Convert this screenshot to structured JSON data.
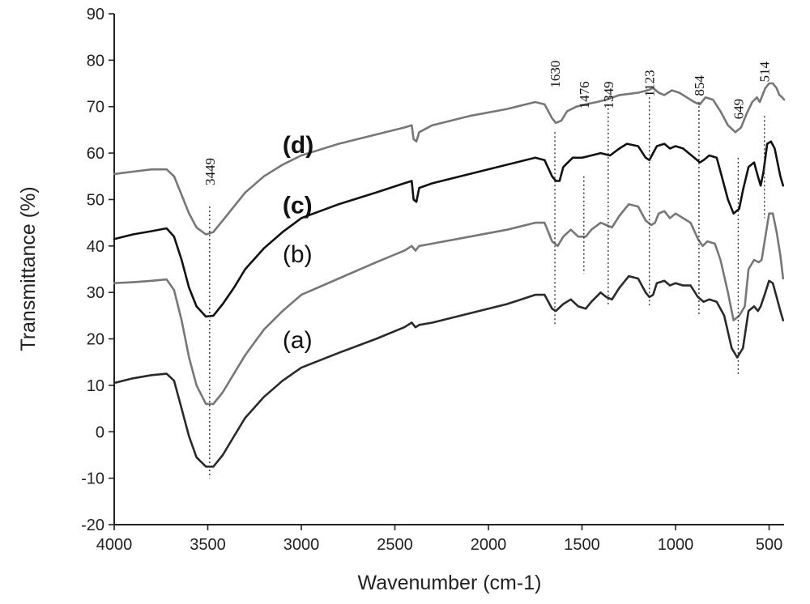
{
  "chart_data": {
    "type": "line",
    "title": "",
    "xlabel": "Wavenumber (cm-1)",
    "ylabel": "Transmittance (%)",
    "xlim": [
      4000,
      420
    ],
    "ylim": [
      -20,
      90
    ],
    "x_ticks": [
      4000,
      3500,
      3000,
      2500,
      2000,
      1500,
      1000,
      500
    ],
    "y_ticks": [
      -20,
      -10,
      0,
      10,
      20,
      30,
      40,
      50,
      60,
      70,
      80,
      90
    ],
    "grid": false,
    "series": [
      {
        "name": "(a)",
        "color": "#2a2a2a",
        "points": [
          [
            4000,
            10.5
          ],
          [
            3900,
            11.5
          ],
          [
            3800,
            12.2
          ],
          [
            3720,
            12.5
          ],
          [
            3680,
            11
          ],
          [
            3640,
            5
          ],
          [
            3600,
            -1
          ],
          [
            3560,
            -5.5
          ],
          [
            3510,
            -7.5
          ],
          [
            3470,
            -7.5
          ],
          [
            3420,
            -5
          ],
          [
            3360,
            -1
          ],
          [
            3300,
            3
          ],
          [
            3200,
            7.5
          ],
          [
            3100,
            11
          ],
          [
            3000,
            13.8
          ],
          [
            2800,
            17
          ],
          [
            2600,
            20
          ],
          [
            2450,
            22.5
          ],
          [
            2410,
            23.5
          ],
          [
            2390,
            22.5
          ],
          [
            2370,
            23
          ],
          [
            2300,
            23.5
          ],
          [
            2100,
            25.5
          ],
          [
            1900,
            27.5
          ],
          [
            1750,
            29.5
          ],
          [
            1700,
            29.5
          ],
          [
            1660,
            26.5
          ],
          [
            1640,
            26
          ],
          [
            1600,
            27.5
          ],
          [
            1560,
            28.5
          ],
          [
            1520,
            27
          ],
          [
            1480,
            26.5
          ],
          [
            1450,
            28
          ],
          [
            1400,
            30
          ],
          [
            1370,
            29
          ],
          [
            1340,
            28.5
          ],
          [
            1300,
            31
          ],
          [
            1250,
            33.5
          ],
          [
            1200,
            33
          ],
          [
            1160,
            30
          ],
          [
            1140,
            29
          ],
          [
            1120,
            29.5
          ],
          [
            1100,
            32
          ],
          [
            1060,
            32.5
          ],
          [
            1030,
            31.5
          ],
          [
            1000,
            32
          ],
          [
            960,
            31.5
          ],
          [
            920,
            31.5
          ],
          [
            880,
            29
          ],
          [
            850,
            28
          ],
          [
            820,
            28.5
          ],
          [
            780,
            28
          ],
          [
            740,
            25
          ],
          [
            700,
            18
          ],
          [
            670,
            16
          ],
          [
            640,
            18
          ],
          [
            610,
            26
          ],
          [
            580,
            27
          ],
          [
            560,
            26
          ],
          [
            545,
            27
          ],
          [
            520,
            30
          ],
          [
            500,
            32.5
          ],
          [
            480,
            32
          ],
          [
            460,
            29
          ],
          [
            440,
            26
          ],
          [
            425,
            24
          ]
        ]
      },
      {
        "name": "(b)",
        "color": "#777777",
        "points": [
          [
            4000,
            32
          ],
          [
            3900,
            32.2
          ],
          [
            3800,
            32.5
          ],
          [
            3720,
            32.8
          ],
          [
            3680,
            30.5
          ],
          [
            3640,
            24
          ],
          [
            3600,
            16
          ],
          [
            3560,
            10
          ],
          [
            3510,
            6
          ],
          [
            3470,
            6
          ],
          [
            3420,
            8.5
          ],
          [
            3360,
            12.5
          ],
          [
            3300,
            16.5
          ],
          [
            3200,
            22
          ],
          [
            3100,
            26
          ],
          [
            3000,
            29.5
          ],
          [
            2800,
            33
          ],
          [
            2600,
            36.5
          ],
          [
            2450,
            39
          ],
          [
            2410,
            40
          ],
          [
            2390,
            39
          ],
          [
            2370,
            40
          ],
          [
            2300,
            40.5
          ],
          [
            2100,
            42
          ],
          [
            1900,
            43.5
          ],
          [
            1750,
            45
          ],
          [
            1700,
            45
          ],
          [
            1660,
            41
          ],
          [
            1630,
            40
          ],
          [
            1600,
            42
          ],
          [
            1560,
            43.5
          ],
          [
            1520,
            42
          ],
          [
            1480,
            42
          ],
          [
            1450,
            43.5
          ],
          [
            1400,
            45
          ],
          [
            1370,
            44.5
          ],
          [
            1340,
            44
          ],
          [
            1300,
            46.5
          ],
          [
            1250,
            49
          ],
          [
            1200,
            48.5
          ],
          [
            1160,
            45.5
          ],
          [
            1130,
            44.5
          ],
          [
            1110,
            45
          ],
          [
            1090,
            47
          ],
          [
            1060,
            47.5
          ],
          [
            1030,
            46
          ],
          [
            1000,
            47
          ],
          [
            960,
            46
          ],
          [
            920,
            45
          ],
          [
            880,
            41.5
          ],
          [
            855,
            40
          ],
          [
            830,
            41
          ],
          [
            790,
            40.5
          ],
          [
            760,
            37
          ],
          [
            720,
            30
          ],
          [
            690,
            24
          ],
          [
            660,
            25
          ],
          [
            630,
            27
          ],
          [
            610,
            35
          ],
          [
            580,
            37
          ],
          [
            555,
            36.5
          ],
          [
            540,
            37
          ],
          [
            520,
            42
          ],
          [
            500,
            47
          ],
          [
            480,
            47
          ],
          [
            460,
            43
          ],
          [
            440,
            38
          ],
          [
            425,
            33
          ]
        ]
      },
      {
        "name": "(c)",
        "color": "#111111",
        "points": [
          [
            4000,
            41.5
          ],
          [
            3900,
            42.5
          ],
          [
            3800,
            43.2
          ],
          [
            3720,
            43.8
          ],
          [
            3680,
            42
          ],
          [
            3640,
            37
          ],
          [
            3600,
            31
          ],
          [
            3560,
            27
          ],
          [
            3510,
            24.8
          ],
          [
            3470,
            25
          ],
          [
            3420,
            27.5
          ],
          [
            3360,
            31
          ],
          [
            3300,
            35
          ],
          [
            3200,
            39.5
          ],
          [
            3100,
            43
          ],
          [
            3000,
            46
          ],
          [
            2800,
            49
          ],
          [
            2600,
            51.5
          ],
          [
            2450,
            53.5
          ],
          [
            2410,
            54
          ],
          [
            2400,
            50
          ],
          [
            2385,
            49.5
          ],
          [
            2370,
            52.5
          ],
          [
            2300,
            53.5
          ],
          [
            2100,
            55.5
          ],
          [
            1900,
            57.5
          ],
          [
            1750,
            59
          ],
          [
            1700,
            58.5
          ],
          [
            1660,
            55
          ],
          [
            1640,
            54
          ],
          [
            1620,
            54
          ],
          [
            1600,
            57
          ],
          [
            1550,
            59
          ],
          [
            1500,
            59
          ],
          [
            1450,
            59.5
          ],
          [
            1400,
            60
          ],
          [
            1350,
            59.5
          ],
          [
            1300,
            61
          ],
          [
            1260,
            62
          ],
          [
            1200,
            61.5
          ],
          [
            1160,
            59
          ],
          [
            1140,
            58.5
          ],
          [
            1120,
            60
          ],
          [
            1100,
            61.5
          ],
          [
            1060,
            62
          ],
          [
            1030,
            61
          ],
          [
            1000,
            61.5
          ],
          [
            960,
            61
          ],
          [
            930,
            60
          ],
          [
            900,
            59
          ],
          [
            870,
            58
          ],
          [
            850,
            58.5
          ],
          [
            820,
            59.5
          ],
          [
            780,
            59
          ],
          [
            760,
            56
          ],
          [
            720,
            50
          ],
          [
            690,
            47
          ],
          [
            660,
            48
          ],
          [
            640,
            52
          ],
          [
            610,
            57
          ],
          [
            580,
            58
          ],
          [
            560,
            55
          ],
          [
            545,
            53
          ],
          [
            530,
            56
          ],
          [
            510,
            62
          ],
          [
            490,
            62.5
          ],
          [
            470,
            61
          ],
          [
            455,
            58
          ],
          [
            440,
            55
          ],
          [
            425,
            53
          ]
        ]
      },
      {
        "name": "(d)",
        "color": "#777777",
        "points": [
          [
            4000,
            55.5
          ],
          [
            3900,
            56
          ],
          [
            3800,
            56.5
          ],
          [
            3720,
            56.5
          ],
          [
            3680,
            55
          ],
          [
            3640,
            51
          ],
          [
            3600,
            47
          ],
          [
            3560,
            44
          ],
          [
            3510,
            42.5
          ],
          [
            3470,
            43
          ],
          [
            3420,
            45.5
          ],
          [
            3360,
            48.5
          ],
          [
            3300,
            51.5
          ],
          [
            3200,
            55
          ],
          [
            3100,
            57.5
          ],
          [
            3000,
            59.5
          ],
          [
            2800,
            62
          ],
          [
            2600,
            64
          ],
          [
            2450,
            65.5
          ],
          [
            2410,
            66
          ],
          [
            2400,
            63
          ],
          [
            2385,
            62.5
          ],
          [
            2370,
            64.5
          ],
          [
            2300,
            66
          ],
          [
            2100,
            68
          ],
          [
            1900,
            69.5
          ],
          [
            1750,
            71
          ],
          [
            1700,
            70.5
          ],
          [
            1660,
            67.5
          ],
          [
            1640,
            66.5
          ],
          [
            1610,
            67
          ],
          [
            1580,
            69
          ],
          [
            1530,
            70
          ],
          [
            1480,
            70.5
          ],
          [
            1420,
            71
          ],
          [
            1370,
            71.5
          ],
          [
            1300,
            72.5
          ],
          [
            1200,
            73
          ],
          [
            1150,
            73.5
          ],
          [
            1120,
            74
          ],
          [
            1090,
            73
          ],
          [
            1060,
            72.5
          ],
          [
            1020,
            73.5
          ],
          [
            980,
            73
          ],
          [
            940,
            72
          ],
          [
            900,
            71
          ],
          [
            870,
            70.5
          ],
          [
            840,
            72
          ],
          [
            800,
            71.5
          ],
          [
            760,
            69
          ],
          [
            720,
            66
          ],
          [
            680,
            64.5
          ],
          [
            650,
            65.5
          ],
          [
            620,
            68.5
          ],
          [
            590,
            71
          ],
          [
            565,
            72
          ],
          [
            550,
            71
          ],
          [
            535,
            72.5
          ],
          [
            520,
            74
          ],
          [
            500,
            75
          ],
          [
            480,
            75
          ],
          [
            460,
            74
          ],
          [
            445,
            72.5
          ],
          [
            430,
            72
          ],
          [
            420,
            71.5
          ]
        ]
      }
    ],
    "series_labels": [
      {
        "text": "(a)",
        "bold": false,
        "x": 3100,
        "y": 18
      },
      {
        "text": "(b)",
        "bold": false,
        "x": 3100,
        "y": 36.5
      },
      {
        "text": "(c)",
        "bold": true,
        "x": 3100,
        "y": 47
      },
      {
        "text": "(d)",
        "bold": true,
        "x": 3100,
        "y": 60
      }
    ],
    "annotations": [
      {
        "label": "3449",
        "x": 3490,
        "y_bottom": -10,
        "y_top": 48.5,
        "label_y": 56
      },
      {
        "label": "1630",
        "x": 1645,
        "y_bottom": 23,
        "y_top": 64.5,
        "label_y": 77
      },
      {
        "label": "1476",
        "x": 1490,
        "y_bottom": 34,
        "y_top": 55,
        "label_y": 72.5
      },
      {
        "label": "1349",
        "x": 1360,
        "y_bottom": 27,
        "y_top": 70.5,
        "label_y": 72.5
      },
      {
        "label": "1123",
        "x": 1140,
        "y_bottom": 27,
        "y_top": 72,
        "label_y": 75
      },
      {
        "label": "854",
        "x": 875,
        "y_bottom": 25,
        "y_top": 71,
        "label_y": 74.5
      },
      {
        "label": "649",
        "x": 665,
        "y_bottom": 12,
        "y_top": 59,
        "label_y": 69.5
      },
      {
        "label": "514",
        "x": 525,
        "y_bottom": 46,
        "y_top": 68,
        "label_y": 77.5
      }
    ]
  }
}
